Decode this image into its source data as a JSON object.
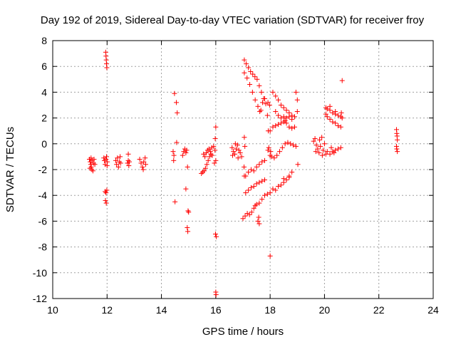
{
  "chart_data": {
    "type": "scatter",
    "title": "Day 192 of 2019, Sidereal Day-to-day VTEC variation (SDTVAR) for receiver froy",
    "xlabel": "GPS time / hours",
    "ylabel": "SDTVAR / TECUs",
    "xlim": [
      10,
      24
    ],
    "ylim": [
      -12,
      8
    ],
    "xticks": [
      10,
      12,
      14,
      16,
      18,
      20,
      22,
      24
    ],
    "yticks": [
      -12,
      -10,
      -8,
      -6,
      -4,
      -2,
      0,
      2,
      4,
      6,
      8
    ],
    "grid": true,
    "marker": "+",
    "color": "#ff0000",
    "series": [
      {
        "name": "SDTVAR",
        "points": [
          [
            11.35,
            -1.2
          ],
          [
            11.38,
            -1.4
          ],
          [
            11.4,
            -1.6
          ],
          [
            11.42,
            -1.8
          ],
          [
            11.44,
            -2.0
          ],
          [
            11.37,
            -1.9
          ],
          [
            11.45,
            -1.3
          ],
          [
            11.5,
            -1.5
          ],
          [
            11.52,
            -1.2
          ],
          [
            11.48,
            -2.1
          ],
          [
            11.41,
            -1.1
          ],
          [
            11.55,
            -1.6
          ],
          [
            11.88,
            -1.1
          ],
          [
            11.9,
            -1.3
          ],
          [
            11.93,
            -1.6
          ],
          [
            11.96,
            -1.2
          ],
          [
            11.98,
            -1.0
          ],
          [
            12.01,
            -1.4
          ],
          [
            12.0,
            -1.7
          ],
          [
            12.32,
            -1.3
          ],
          [
            12.35,
            -1.6
          ],
          [
            12.38,
            -1.1
          ],
          [
            12.42,
            -1.8
          ],
          [
            12.45,
            -1.4
          ],
          [
            12.48,
            -1.0
          ],
          [
            12.5,
            -1.5
          ],
          [
            12.75,
            -1.5
          ],
          [
            12.78,
            -1.3
          ],
          [
            12.8,
            -1.7
          ],
          [
            12.78,
            -0.8
          ],
          [
            12.82,
            -1.4
          ],
          [
            13.2,
            -1.2
          ],
          [
            13.25,
            -1.5
          ],
          [
            13.3,
            -1.8
          ],
          [
            13.35,
            -1.4
          ],
          [
            13.4,
            -1.1
          ],
          [
            13.33,
            -2.0
          ],
          [
            13.42,
            -1.6
          ],
          [
            11.95,
            7.1
          ],
          [
            11.96,
            6.8
          ],
          [
            11.97,
            6.5
          ],
          [
            11.98,
            6.2
          ],
          [
            11.99,
            5.9
          ],
          [
            11.93,
            -3.7
          ],
          [
            11.96,
            -3.8
          ],
          [
            11.99,
            -3.6
          ],
          [
            11.94,
            -4.4
          ],
          [
            11.97,
            -4.6
          ],
          [
            14.43,
            -0.6
          ],
          [
            14.46,
            -0.9
          ],
          [
            14.45,
            -1.3
          ],
          [
            14.5,
            -4.5
          ],
          [
            14.48,
            3.9
          ],
          [
            14.55,
            3.2
          ],
          [
            14.58,
            2.4
          ],
          [
            14.56,
            0.1
          ],
          [
            14.78,
            -0.9
          ],
          [
            14.82,
            -0.6
          ],
          [
            14.86,
            -0.4
          ],
          [
            14.9,
            -0.7
          ],
          [
            14.93,
            -0.5
          ],
          [
            14.96,
            -1.8
          ],
          [
            14.9,
            -3.5
          ],
          [
            14.98,
            -5.2
          ],
          [
            15.0,
            -5.3
          ],
          [
            14.95,
            -6.5
          ],
          [
            14.97,
            -6.8
          ],
          [
            15.47,
            -2.3
          ],
          [
            15.52,
            -2.2
          ],
          [
            15.57,
            -2.1
          ],
          [
            15.62,
            -1.9
          ],
          [
            15.67,
            -1.6
          ],
          [
            15.72,
            -1.3
          ],
          [
            15.77,
            -1.0
          ],
          [
            15.82,
            -0.8
          ],
          [
            15.87,
            -0.9
          ],
          [
            15.55,
            -0.8
          ],
          [
            15.6,
            -1.0
          ],
          [
            15.65,
            -0.7
          ],
          [
            15.7,
            -0.5
          ],
          [
            15.75,
            -0.4
          ],
          [
            15.8,
            -0.6
          ],
          [
            15.85,
            -0.3
          ],
          [
            15.92,
            -0.2
          ],
          [
            15.97,
            -0.5
          ],
          [
            16.0,
            -1.3
          ],
          [
            15.95,
            -1.5
          ],
          [
            15.98,
            0.4
          ],
          [
            16.0,
            1.3
          ],
          [
            16.02,
            -7.2
          ],
          [
            15.99,
            -7.0
          ],
          [
            16.0,
            -11.5
          ],
          [
            16.01,
            -11.7
          ],
          [
            16.6,
            -0.3
          ],
          [
            16.65,
            -0.6
          ],
          [
            16.7,
            -0.8
          ],
          [
            16.75,
            -0.4
          ],
          [
            16.8,
            -0.1
          ],
          [
            16.85,
            -0.5
          ],
          [
            16.9,
            -0.7
          ],
          [
            16.95,
            -1.0
          ],
          [
            16.62,
            -0.9
          ],
          [
            16.72,
            0.0
          ],
          [
            16.82,
            -1.1
          ],
          [
            17.05,
            6.5
          ],
          [
            17.12,
            6.2
          ],
          [
            17.2,
            5.9
          ],
          [
            17.28,
            5.6
          ],
          [
            17.36,
            5.4
          ],
          [
            17.44,
            5.2
          ],
          [
            17.52,
            5.0
          ],
          [
            17.6,
            4.5
          ],
          [
            17.68,
            4.0
          ],
          [
            17.76,
            3.5
          ],
          [
            17.84,
            3.1
          ],
          [
            17.92,
            3.2
          ],
          [
            17.98,
            3.0
          ],
          [
            17.05,
            5.5
          ],
          [
            17.15,
            5.1
          ],
          [
            17.25,
            4.6
          ],
          [
            17.35,
            4.0
          ],
          [
            17.45,
            3.4
          ],
          [
            17.55,
            2.9
          ],
          [
            17.62,
            2.5
          ],
          [
            17.66,
            2.6
          ],
          [
            17.72,
            3.2
          ],
          [
            17.8,
            3.5
          ],
          [
            17.9,
            2.2
          ],
          [
            17.93,
            1.0
          ],
          [
            17.95,
            -0.3
          ],
          [
            17.92,
            -0.5
          ],
          [
            18.0,
            -8.7
          ],
          [
            18.02,
            -0.6
          ],
          [
            18.0,
            -0.9
          ],
          [
            17.05,
            0.5
          ],
          [
            17.07,
            -0.2
          ],
          [
            17.04,
            -1.8
          ],
          [
            17.1,
            -2.5
          ],
          [
            17.0,
            -5.8
          ],
          [
            17.08,
            -5.6
          ],
          [
            17.16,
            -5.4
          ],
          [
            17.24,
            -5.5
          ],
          [
            17.32,
            -5.3
          ],
          [
            17.4,
            -5.0
          ],
          [
            17.45,
            -4.8
          ],
          [
            17.5,
            -4.7
          ],
          [
            17.6,
            -4.6
          ],
          [
            17.7,
            -4.3
          ],
          [
            17.8,
            -4.0
          ],
          [
            17.9,
            -3.9
          ],
          [
            18.0,
            -3.8
          ],
          [
            17.1,
            -3.8
          ],
          [
            17.2,
            -3.6
          ],
          [
            17.3,
            -3.4
          ],
          [
            17.4,
            -3.3
          ],
          [
            17.5,
            -3.1
          ],
          [
            17.6,
            -3.0
          ],
          [
            17.7,
            -2.9
          ],
          [
            17.8,
            -2.8
          ],
          [
            17.4,
            -2.1
          ],
          [
            17.5,
            -1.8
          ],
          [
            17.6,
            -1.6
          ],
          [
            17.7,
            -1.4
          ],
          [
            17.8,
            -1.3
          ],
          [
            17.05,
            -2.5
          ],
          [
            17.2,
            -2.2
          ],
          [
            17.3,
            -2.0
          ],
          [
            17.55,
            -6.0
          ],
          [
            17.6,
            -6.2
          ],
          [
            17.58,
            -5.7
          ],
          [
            18.1,
            4.0
          ],
          [
            18.2,
            3.7
          ],
          [
            18.3,
            3.4
          ],
          [
            18.4,
            3.0
          ],
          [
            18.5,
            2.8
          ],
          [
            18.6,
            2.6
          ],
          [
            18.7,
            2.4
          ],
          [
            18.8,
            2.2
          ],
          [
            18.9,
            2.1
          ],
          [
            19.0,
            2.5
          ],
          [
            18.2,
            2.5
          ],
          [
            18.3,
            2.2
          ],
          [
            18.4,
            2.0
          ],
          [
            18.5,
            2.1
          ],
          [
            18.55,
            1.8
          ],
          [
            18.6,
            2.0
          ],
          [
            18.7,
            2.1
          ],
          [
            18.8,
            1.9
          ],
          [
            18.0,
            1.0
          ],
          [
            18.1,
            1.3
          ],
          [
            18.2,
            1.4
          ],
          [
            18.3,
            1.5
          ],
          [
            18.4,
            1.6
          ],
          [
            18.5,
            1.7
          ],
          [
            18.6,
            1.6
          ],
          [
            18.7,
            1.3
          ],
          [
            18.8,
            1.2
          ],
          [
            18.9,
            1.3
          ],
          [
            18.05,
            -1.0
          ],
          [
            18.15,
            -1.1
          ],
          [
            18.25,
            -0.9
          ],
          [
            18.35,
            -0.6
          ],
          [
            18.45,
            -0.3
          ],
          [
            18.55,
            0.0
          ],
          [
            18.65,
            0.1
          ],
          [
            18.75,
            0.0
          ],
          [
            18.85,
            -0.1
          ],
          [
            18.95,
            -0.2
          ],
          [
            18.1,
            -3.5
          ],
          [
            18.2,
            -3.6
          ],
          [
            18.3,
            -3.3
          ],
          [
            18.4,
            -3.2
          ],
          [
            18.5,
            -3.0
          ],
          [
            18.6,
            -2.8
          ],
          [
            18.7,
            -2.5
          ],
          [
            18.8,
            -2.2
          ],
          [
            18.5,
            -2.7
          ],
          [
            18.7,
            -2.6
          ],
          [
            18.95,
            4.0
          ],
          [
            19.0,
            3.4
          ],
          [
            19.02,
            -1.6
          ],
          [
            19.6,
            0.2
          ],
          [
            19.65,
            0.4
          ],
          [
            19.7,
            -0.1
          ],
          [
            19.75,
            -0.4
          ],
          [
            19.8,
            -0.7
          ],
          [
            19.85,
            -0.2
          ],
          [
            19.9,
            0.5
          ],
          [
            19.95,
            -0.5
          ],
          [
            20.0,
            0.0
          ],
          [
            19.68,
            -0.6
          ],
          [
            19.82,
            0.3
          ],
          [
            19.92,
            -0.9
          ],
          [
            20.05,
            -0.8
          ],
          [
            20.1,
            -0.6
          ],
          [
            20.2,
            -0.8
          ],
          [
            20.3,
            -0.6
          ],
          [
            20.4,
            -0.5
          ],
          [
            20.5,
            -0.4
          ],
          [
            20.6,
            -0.3
          ],
          [
            20.25,
            -0.3
          ],
          [
            20.35,
            -0.7
          ],
          [
            20.05,
            2.8
          ],
          [
            20.1,
            2.7
          ],
          [
            20.2,
            2.6
          ],
          [
            20.3,
            2.4
          ],
          [
            20.4,
            2.3
          ],
          [
            20.5,
            2.2
          ],
          [
            20.6,
            2.1
          ],
          [
            20.65,
            2.0
          ],
          [
            20.05,
            2.3
          ],
          [
            20.1,
            2.1
          ],
          [
            20.2,
            1.9
          ],
          [
            20.3,
            1.7
          ],
          [
            20.4,
            1.6
          ],
          [
            20.5,
            1.4
          ],
          [
            20.6,
            1.3
          ],
          [
            20.2,
            2.9
          ],
          [
            20.4,
            2.5
          ],
          [
            20.62,
            2.4
          ],
          [
            20.65,
            4.9
          ],
          [
            22.65,
            1.1
          ],
          [
            22.66,
            0.8
          ],
          [
            22.67,
            0.6
          ],
          [
            22.68,
            0.3
          ],
          [
            22.65,
            -0.2
          ],
          [
            22.66,
            -0.4
          ],
          [
            22.68,
            -0.6
          ]
        ]
      }
    ]
  }
}
